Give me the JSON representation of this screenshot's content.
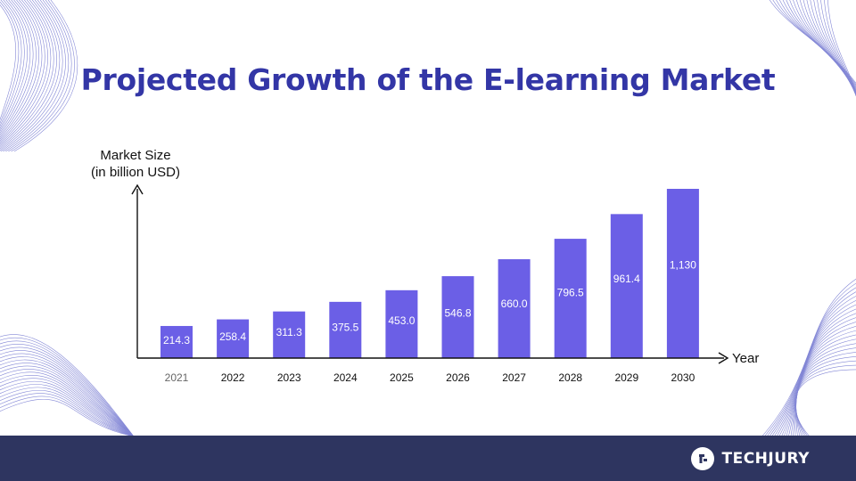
{
  "title": "Projected Growth of the E-learning Market",
  "brand": {
    "name": "TECHJURY",
    "icon": "techjury-logo-icon"
  },
  "colors": {
    "bar": "#6b5fe6",
    "title": "#3336a6",
    "footer": "#2e3560",
    "deco": "#5a5fc8",
    "axis": "#111111"
  },
  "chart_data": {
    "type": "bar",
    "title": "Projected Growth of the E-learning Market",
    "ylabel": "Market Size",
    "ylabel_sub": "(in billion USD)",
    "xlabel": "Year",
    "categories": [
      "2021",
      "2022",
      "2023",
      "2024",
      "2025",
      "2026",
      "2027",
      "2028",
      "2029",
      "2030"
    ],
    "values": [
      214.3,
      258.4,
      311.3,
      375.5,
      453.0,
      546.8,
      660.0,
      796.5,
      961.4,
      1130
    ],
    "value_labels": [
      "214.3",
      "258.4",
      "311.3",
      "375.5",
      "453.0",
      "546.8",
      "660.0",
      "796.5",
      "961.4",
      "1,130"
    ],
    "ylim": [
      0,
      1300
    ],
    "grid": false,
    "legend": "none"
  }
}
